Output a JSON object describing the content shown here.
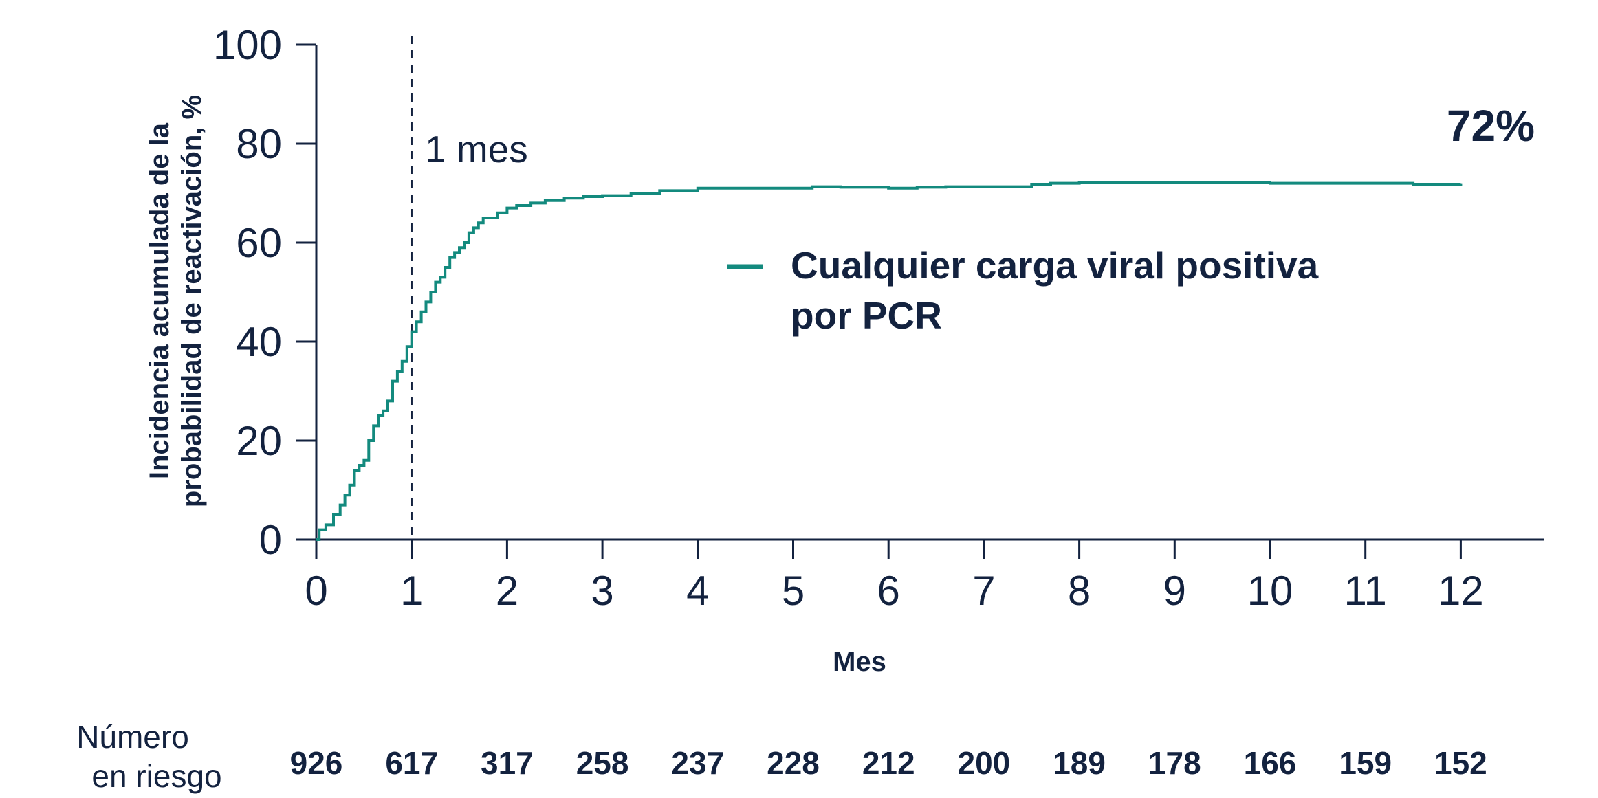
{
  "chart_data": {
    "type": "line",
    "ylabel_line1": "Incidencia acumulada de la",
    "ylabel_line2": "probabilidad de reactivación, %",
    "xlabel": "Mes",
    "xlim": [
      0,
      12.9
    ],
    "ylim": [
      0,
      100
    ],
    "x_ticks": [
      "0",
      "1",
      "2",
      "3",
      "4",
      "5",
      "6",
      "7",
      "8",
      "9",
      "10",
      "11",
      "12"
    ],
    "y_ticks": [
      "0",
      "20",
      "40",
      "60",
      "80",
      "100"
    ],
    "grid": false,
    "legend_position": "center-right",
    "series": [
      {
        "name_line1": "Cualquier carga viral positiva",
        "name_line2": "por PCR",
        "color": "#138a7e",
        "x": [
          0,
          0.03,
          0.1,
          0.18,
          0.25,
          0.3,
          0.35,
          0.4,
          0.45,
          0.5,
          0.55,
          0.6,
          0.65,
          0.7,
          0.75,
          0.8,
          0.85,
          0.9,
          0.95,
          1.0,
          1.05,
          1.1,
          1.15,
          1.2,
          1.25,
          1.3,
          1.35,
          1.4,
          1.45,
          1.5,
          1.55,
          1.6,
          1.65,
          1.7,
          1.75,
          1.8,
          1.9,
          2.0,
          2.1,
          2.25,
          2.4,
          2.6,
          2.8,
          3.0,
          3.3,
          3.6,
          4.0,
          4.5,
          5.0,
          5.2,
          5.5,
          6.0,
          6.3,
          6.6,
          7.0,
          7.5,
          7.7,
          8.0,
          8.5,
          9.0,
          9.5,
          10.0,
          10.5,
          11.0,
          11.5,
          12.0
        ],
        "y": [
          0,
          2,
          3,
          5,
          7,
          9,
          11,
          14,
          15,
          16,
          20,
          23,
          25,
          26,
          28,
          32,
          34,
          36,
          39,
          42,
          44,
          46,
          48,
          50,
          52,
          53,
          55,
          57,
          58,
          59,
          60,
          62,
          63,
          64,
          65,
          65,
          66,
          67,
          67.5,
          68,
          68.5,
          69,
          69.3,
          69.5,
          70,
          70.5,
          71,
          71,
          71,
          71.3,
          71.2,
          71,
          71.2,
          71.3,
          71.3,
          71.8,
          72,
          72.2,
          72.2,
          72.2,
          72.1,
          72,
          72,
          72,
          71.8,
          72
        ]
      }
    ],
    "annotations": {
      "vline_x": 1,
      "vline_label": "1 mes",
      "end_label": "72%"
    },
    "risk_table": {
      "title_line1": "Número",
      "title_line2": "en riesgo",
      "values": [
        "926",
        "617",
        "317",
        "258",
        "237",
        "228",
        "212",
        "200",
        "189",
        "178",
        "166",
        "159",
        "152"
      ]
    }
  }
}
